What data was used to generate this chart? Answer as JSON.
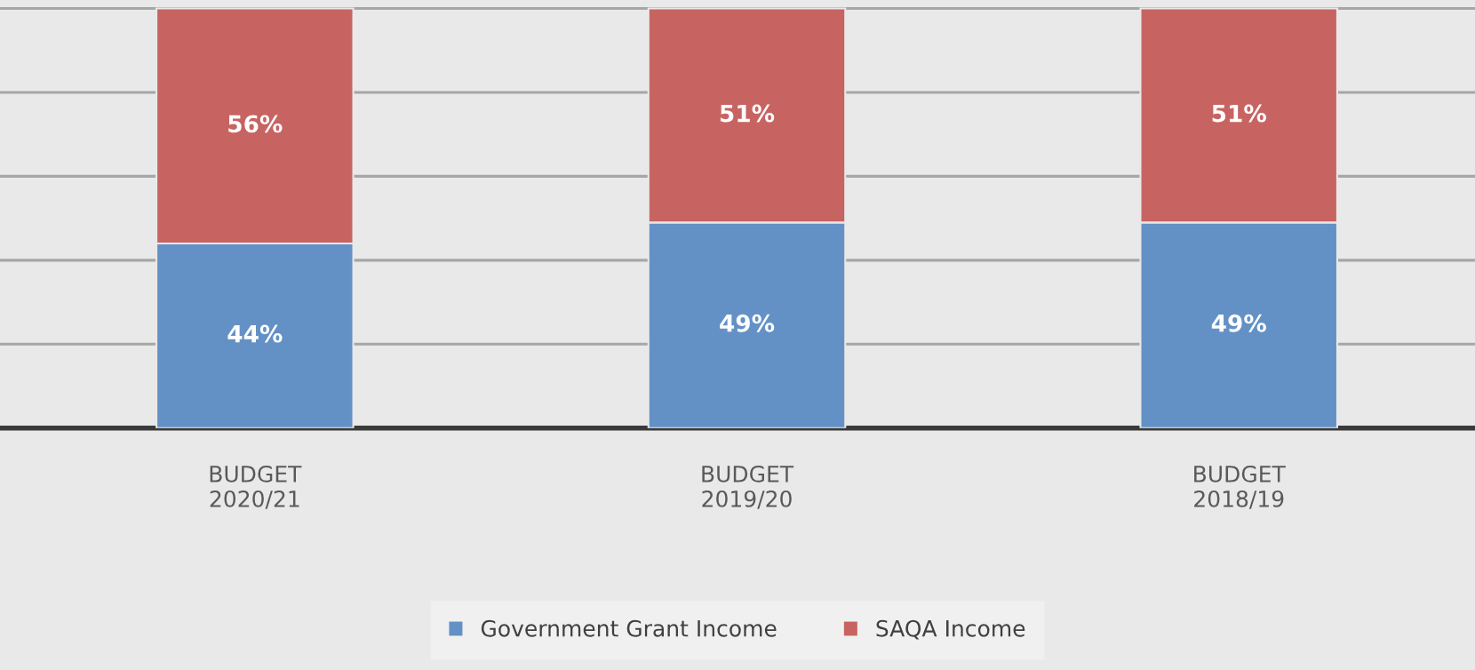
{
  "chart_data": {
    "type": "bar",
    "stacked": true,
    "categories": [
      "BUDGET\n2020/21",
      "BUDGET\n2019/20",
      "BUDGET\n2018/19"
    ],
    "series": [
      {
        "name": "Government Grant Income",
        "color": "#6391c6",
        "values": [
          44,
          49,
          49
        ],
        "value_labels": [
          "44%",
          "49%",
          "49%"
        ]
      },
      {
        "name": "SAQA Income",
        "color": "#c76462",
        "values": [
          56,
          51,
          51
        ],
        "value_labels": [
          "56%",
          "51%",
          "51%"
        ]
      }
    ],
    "ylim": [
      0,
      102
    ],
    "yticks": [
      {
        "value": 20,
        "label": null
      },
      {
        "value": 40,
        "label": null
      },
      {
        "value": 60,
        "label": null
      },
      {
        "value": 80,
        "label": null
      },
      {
        "value": 100,
        "label": null
      }
    ],
    "tick_labels": "x",
    "grid": "y",
    "legend": "bottom"
  }
}
